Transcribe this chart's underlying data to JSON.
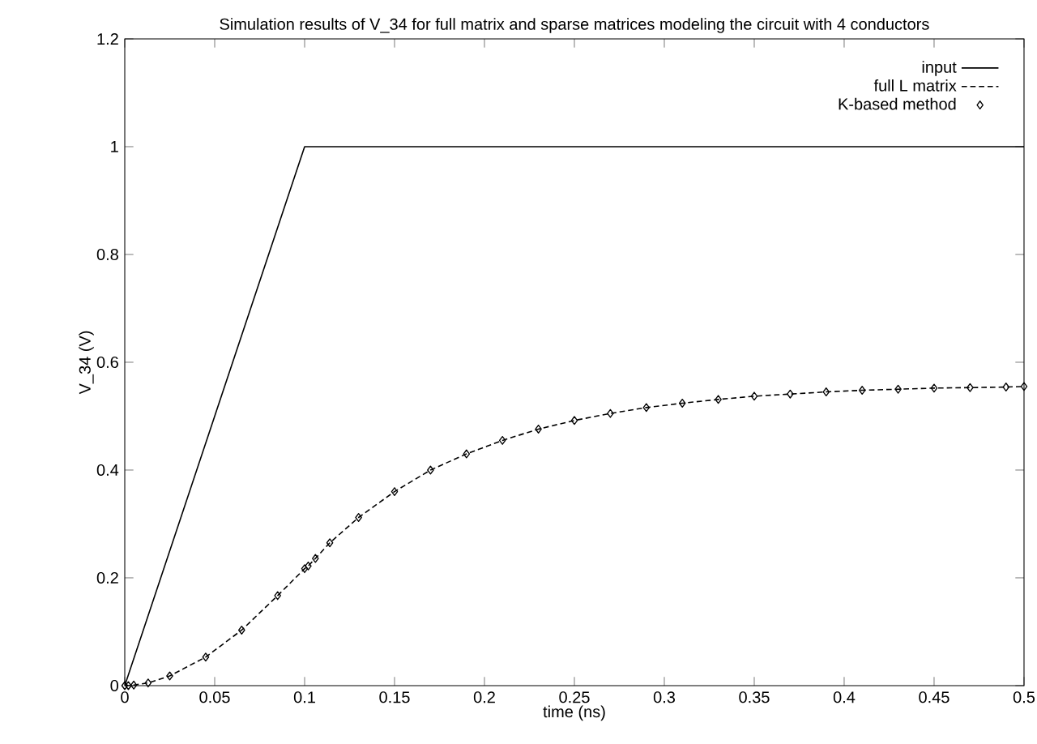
{
  "chart_data": {
    "type": "line",
    "title": "Simulation results of V_34 for full matrix and sparse matrices modeling the circuit with 4 conductors",
    "xlabel": "time (ns)",
    "ylabel": "V_34 (V)",
    "xlim": [
      0,
      0.5
    ],
    "ylim": [
      0,
      1.2
    ],
    "xticks": [
      0,
      0.05,
      0.1,
      0.15,
      0.2,
      0.25,
      0.3,
      0.35,
      0.4,
      0.45,
      0.5
    ],
    "yticks": [
      0,
      0.2,
      0.4,
      0.6,
      0.8,
      1,
      1.2
    ],
    "grid": false,
    "legend": "top right",
    "series": [
      {
        "name": "input",
        "color": "#000000",
        "line_style": "solid",
        "x": [
          0,
          0.1,
          0.5
        ],
        "values": [
          0,
          1,
          1
        ]
      },
      {
        "name": "full L matrix",
        "color": "#000000",
        "type": "line",
        "line_style": "dashed",
        "x": [
          0,
          0.002,
          0.005,
          0.013,
          0.025,
          0.045,
          0.065,
          0.085,
          0.1,
          0.102,
          0.106,
          0.114,
          0.13,
          0.15,
          0.17,
          0.19,
          0.21,
          0.23,
          0.25,
          0.27,
          0.29,
          0.31,
          0.33,
          0.35,
          0.37,
          0.39,
          0.41,
          0.43,
          0.45,
          0.47,
          0.49,
          0.5
        ],
        "values": [
          0,
          0,
          0.001,
          0.005,
          0.018,
          0.053,
          0.103,
          0.167,
          0.217,
          0.222,
          0.236,
          0.265,
          0.312,
          0.36,
          0.4,
          0.43,
          0.455,
          0.476,
          0.492,
          0.505,
          0.516,
          0.524,
          0.531,
          0.537,
          0.541,
          0.545,
          0.548,
          0.55,
          0.552,
          0.553,
          0.554,
          0.555
        ]
      },
      {
        "name": "K-based method",
        "color": "#000000",
        "type": "scatter",
        "marker": "diamond",
        "x": [
          0,
          0.002,
          0.005,
          0.013,
          0.025,
          0.045,
          0.065,
          0.085,
          0.1,
          0.102,
          0.106,
          0.114,
          0.13,
          0.15,
          0.17,
          0.19,
          0.21,
          0.23,
          0.25,
          0.27,
          0.29,
          0.31,
          0.33,
          0.35,
          0.37,
          0.39,
          0.41,
          0.43,
          0.45,
          0.47,
          0.49,
          0.5
        ],
        "values": [
          0,
          0,
          0.001,
          0.005,
          0.018,
          0.053,
          0.103,
          0.167,
          0.217,
          0.222,
          0.236,
          0.265,
          0.312,
          0.36,
          0.4,
          0.43,
          0.455,
          0.476,
          0.492,
          0.505,
          0.516,
          0.524,
          0.531,
          0.537,
          0.541,
          0.545,
          0.548,
          0.55,
          0.552,
          0.553,
          0.554,
          0.555
        ]
      }
    ]
  }
}
